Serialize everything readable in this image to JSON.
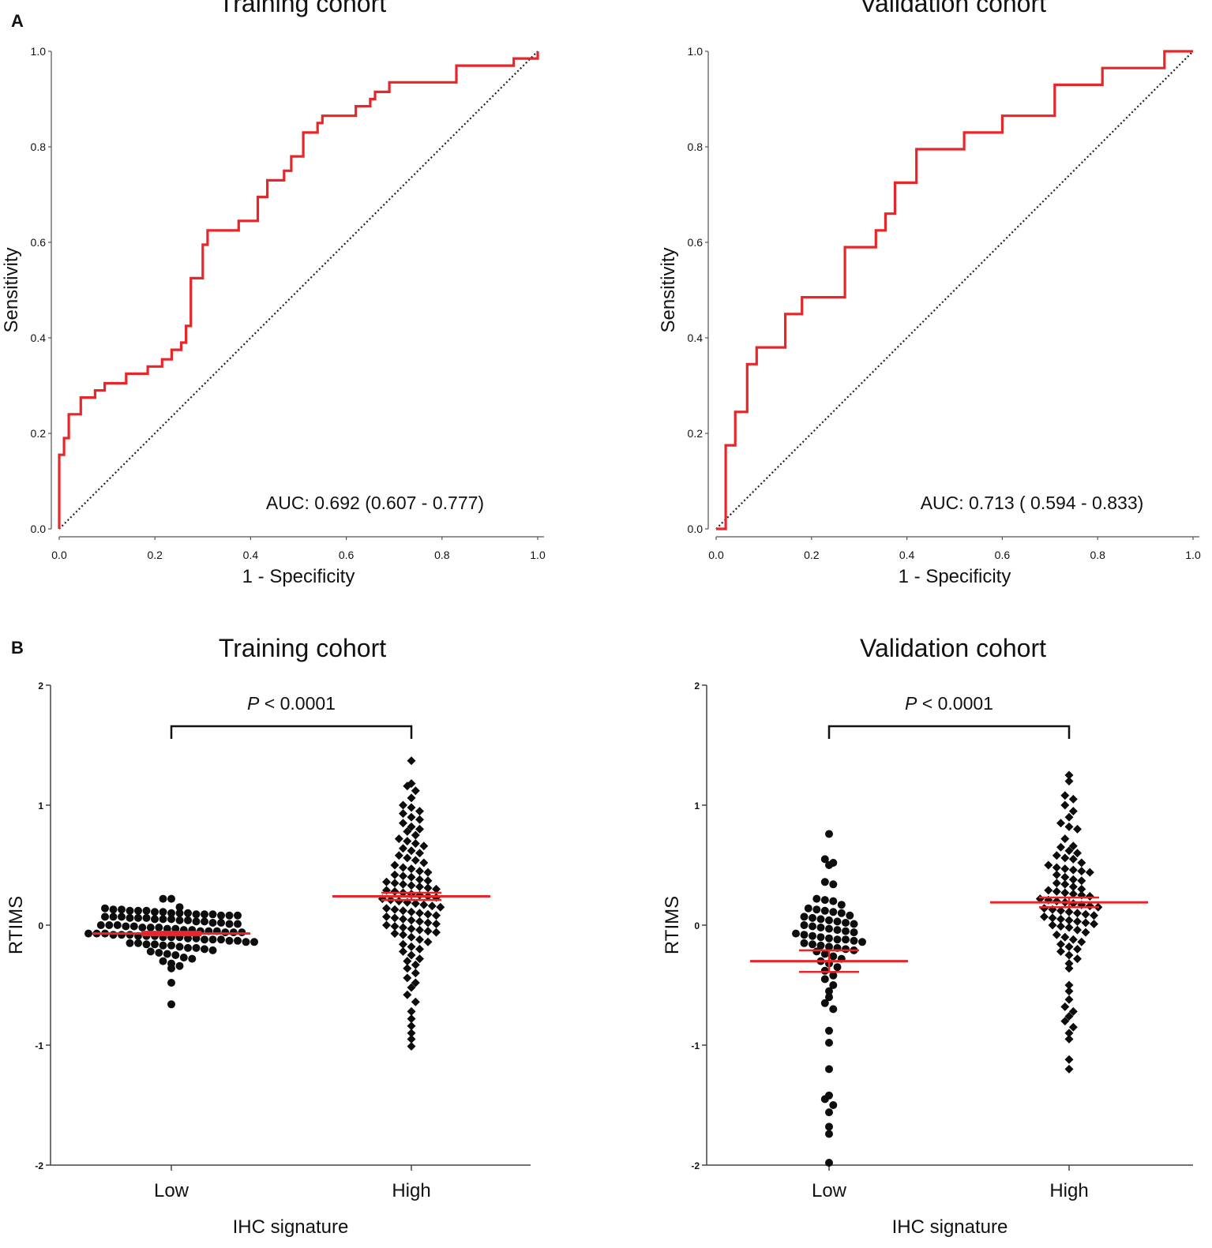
{
  "chart_data": [
    {
      "id": "A1",
      "type": "line",
      "panel_label": "A",
      "title": "Training cohort",
      "xlabel": "1 - Specificity",
      "ylabel": "Sensitivity",
      "xlim": [
        0,
        1
      ],
      "ylim": [
        0,
        1
      ],
      "xticks": [
        "0.0",
        "0.2",
        "0.4",
        "0.6",
        "0.8",
        "1.0"
      ],
      "yticks": [
        "0.0",
        "0.2",
        "0.4",
        "0.6",
        "0.8",
        "1.0"
      ],
      "annotation": "AUC: 0.692 (0.607 - 0.777)",
      "auc": 0.692,
      "auc_ci": [
        0.607,
        0.777
      ],
      "series": [
        {
          "name": "ROC",
          "color": "#e8262a",
          "x": [
            0,
            0,
            0.01,
            0.01,
            0.02,
            0.02,
            0.045,
            0.045,
            0.075,
            0.075,
            0.095,
            0.095,
            0.14,
            0.14,
            0.185,
            0.185,
            0.215,
            0.215,
            0.235,
            0.235,
            0.255,
            0.255,
            0.265,
            0.265,
            0.275,
            0.275,
            0.3,
            0.3,
            0.31,
            0.31,
            0.375,
            0.375,
            0.415,
            0.415,
            0.435,
            0.435,
            0.47,
            0.47,
            0.485,
            0.485,
            0.51,
            0.51,
            0.54,
            0.54,
            0.55,
            0.55,
            0.62,
            0.62,
            0.65,
            0.65,
            0.66,
            0.66,
            0.69,
            0.69,
            0.83,
            0.83,
            0.95,
            0.95,
            1.0,
            1.0
          ],
          "y": [
            0,
            0.155,
            0.155,
            0.19,
            0.19,
            0.24,
            0.24,
            0.275,
            0.275,
            0.29,
            0.29,
            0.305,
            0.305,
            0.325,
            0.325,
            0.34,
            0.34,
            0.355,
            0.355,
            0.375,
            0.375,
            0.39,
            0.39,
            0.425,
            0.425,
            0.525,
            0.525,
            0.595,
            0.595,
            0.625,
            0.625,
            0.645,
            0.645,
            0.695,
            0.695,
            0.73,
            0.73,
            0.75,
            0.75,
            0.78,
            0.78,
            0.83,
            0.83,
            0.85,
            0.85,
            0.865,
            0.865,
            0.885,
            0.885,
            0.9,
            0.9,
            0.915,
            0.915,
            0.935,
            0.935,
            0.97,
            0.97,
            0.985,
            0.985,
            1.0
          ]
        },
        {
          "name": "Reference",
          "color": "#222222",
          "x": [
            0,
            1
          ],
          "y": [
            0,
            1
          ]
        }
      ]
    },
    {
      "id": "A2",
      "type": "line",
      "panel_label": "",
      "title": "Validation cohort",
      "xlabel": "1 - Specificity",
      "ylabel": "Sensitivity",
      "xlim": [
        0,
        1
      ],
      "ylim": [
        0,
        1
      ],
      "xticks": [
        "0.0",
        "0.2",
        "0.4",
        "0.6",
        "0.8",
        "1.0"
      ],
      "yticks": [
        "0.0",
        "0.2",
        "0.4",
        "0.6",
        "0.8",
        "1.0"
      ],
      "annotation": "AUC: 0.713 ( 0.594 - 0.833)",
      "auc": 0.713,
      "auc_ci": [
        0.594,
        0.833
      ],
      "series": [
        {
          "name": "ROC",
          "color": "#e8262a",
          "x": [
            0,
            0.02,
            0.02,
            0.04,
            0.04,
            0.065,
            0.065,
            0.085,
            0.085,
            0.145,
            0.145,
            0.18,
            0.18,
            0.27,
            0.27,
            0.335,
            0.335,
            0.355,
            0.355,
            0.375,
            0.375,
            0.42,
            0.42,
            0.52,
            0.52,
            0.6,
            0.6,
            0.71,
            0.71,
            0.81,
            0.81,
            0.94,
            0.94,
            1.0
          ],
          "y": [
            0,
            0,
            0.175,
            0.175,
            0.245,
            0.245,
            0.345,
            0.345,
            0.38,
            0.38,
            0.45,
            0.45,
            0.485,
            0.485,
            0.59,
            0.59,
            0.625,
            0.625,
            0.66,
            0.66,
            0.725,
            0.725,
            0.795,
            0.795,
            0.83,
            0.83,
            0.865,
            0.865,
            0.93,
            0.93,
            0.965,
            0.965,
            1.0,
            1.0
          ]
        },
        {
          "name": "Reference",
          "color": "#222222",
          "x": [
            0,
            1
          ],
          "y": [
            0,
            1
          ]
        }
      ]
    },
    {
      "id": "B1",
      "type": "scatter",
      "panel_label": "B",
      "title": "Training cohort",
      "xlabel": "IHC signature",
      "ylabel": "RTIMS",
      "ylim": [
        -2,
        2
      ],
      "yticks": [
        "2",
        "1",
        "0",
        "-1",
        "-2"
      ],
      "categories": [
        "Low",
        "High"
      ],
      "annotation_italic": "P",
      "annotation": " < 0.0001",
      "groups": [
        {
          "name": "Low",
          "marker": "circle",
          "mean": -0.07,
          "sem": 0.015,
          "values": [
            0.22,
            0.22,
            0.15,
            0.14,
            0.13,
            0.13,
            0.12,
            0.12,
            0.12,
            0.11,
            0.11,
            0.1,
            0.1,
            0.1,
            0.09,
            0.09,
            0.09,
            0.08,
            0.08,
            0.08,
            0.07,
            0.07,
            0.07,
            0.06,
            0.06,
            0.06,
            0.05,
            0.05,
            0.05,
            0.04,
            0.04,
            0.03,
            0.03,
            0.02,
            0.02,
            0.01,
            0.01,
            0.0,
            0.0,
            0.0,
            -0.01,
            -0.01,
            -0.02,
            -0.02,
            -0.02,
            -0.03,
            -0.03,
            -0.04,
            -0.04,
            -0.05,
            -0.05,
            -0.05,
            -0.06,
            -0.06,
            -0.06,
            -0.07,
            -0.07,
            -0.07,
            -0.08,
            -0.08,
            -0.08,
            -0.09,
            -0.09,
            -0.09,
            -0.1,
            -0.1,
            -0.1,
            -0.11,
            -0.11,
            -0.12,
            -0.12,
            -0.12,
            -0.13,
            -0.13,
            -0.14,
            -0.14,
            -0.15,
            -0.15,
            -0.16,
            -0.16,
            -0.17,
            -0.17,
            -0.18,
            -0.19,
            -0.19,
            -0.2,
            -0.21,
            -0.22,
            -0.23,
            -0.24,
            -0.25,
            -0.27,
            -0.28,
            -0.3,
            -0.32,
            -0.34,
            -0.36,
            -0.48,
            -0.66
          ]
        },
        {
          "name": "High",
          "marker": "diamond",
          "mean": 0.24,
          "sem": 0.03,
          "values": [
            1.37,
            1.18,
            1.16,
            1.12,
            1.06,
            1.0,
            0.98,
            0.95,
            0.93,
            0.9,
            0.88,
            0.85,
            0.82,
            0.8,
            0.78,
            0.75,
            0.72,
            0.7,
            0.68,
            0.66,
            0.64,
            0.62,
            0.6,
            0.58,
            0.56,
            0.54,
            0.52,
            0.5,
            0.48,
            0.47,
            0.45,
            0.44,
            0.42,
            0.41,
            0.4,
            0.38,
            0.37,
            0.36,
            0.35,
            0.34,
            0.33,
            0.32,
            0.31,
            0.3,
            0.29,
            0.28,
            0.27,
            0.26,
            0.25,
            0.24,
            0.23,
            0.22,
            0.21,
            0.2,
            0.19,
            0.18,
            0.17,
            0.16,
            0.15,
            0.14,
            0.13,
            0.12,
            0.11,
            0.1,
            0.09,
            0.08,
            0.07,
            0.06,
            0.05,
            0.04,
            0.03,
            0.02,
            0.01,
            0.0,
            -0.01,
            -0.02,
            -0.03,
            -0.04,
            -0.05,
            -0.06,
            -0.07,
            -0.08,
            -0.1,
            -0.12,
            -0.14,
            -0.16,
            -0.18,
            -0.2,
            -0.22,
            -0.25,
            -0.28,
            -0.3,
            -0.33,
            -0.36,
            -0.4,
            -0.44,
            -0.48,
            -0.52,
            -0.58,
            -0.64,
            -0.72,
            -0.78,
            -0.84,
            -0.9,
            -0.95,
            -1.01
          ]
        }
      ]
    },
    {
      "id": "B2",
      "type": "scatter",
      "panel_label": "",
      "title": "Validation cohort",
      "xlabel": "IHC signature",
      "ylabel": "RTIMS",
      "ylim": [
        -2,
        2
      ],
      "yticks": [
        "2",
        "1",
        "0",
        "-1",
        "-2"
      ],
      "categories": [
        "Low",
        "High"
      ],
      "annotation_italic": "P",
      "annotation": " < 0.0001",
      "groups": [
        {
          "name": "Low",
          "marker": "circle",
          "mean": -0.3,
          "sem": 0.09,
          "values": [
            0.76,
            0.55,
            0.52,
            0.5,
            0.36,
            0.34,
            0.22,
            0.21,
            0.2,
            0.17,
            0.14,
            0.13,
            0.12,
            0.11,
            0.1,
            0.08,
            0.07,
            0.06,
            0.05,
            0.04,
            0.03,
            0.02,
            0.01,
            0.0,
            -0.01,
            -0.02,
            -0.03,
            -0.04,
            -0.05,
            -0.06,
            -0.07,
            -0.08,
            -0.09,
            -0.1,
            -0.11,
            -0.12,
            -0.12,
            -0.13,
            -0.14,
            -0.15,
            -0.16,
            -0.17,
            -0.18,
            -0.19,
            -0.2,
            -0.21,
            -0.22,
            -0.24,
            -0.26,
            -0.28,
            -0.3,
            -0.32,
            -0.35,
            -0.38,
            -0.42,
            -0.45,
            -0.5,
            -0.55,
            -0.6,
            -0.65,
            -0.7,
            -0.88,
            -0.98,
            -1.2,
            -1.42,
            -1.45,
            -1.5,
            -1.56,
            -1.68,
            -1.74,
            -1.98
          ]
        },
        {
          "name": "High",
          "marker": "diamond",
          "mean": 0.19,
          "sem": 0.04,
          "values": [
            1.25,
            1.2,
            1.08,
            1.05,
            1.0,
            0.95,
            0.9,
            0.85,
            0.82,
            0.8,
            0.72,
            0.66,
            0.65,
            0.62,
            0.6,
            0.58,
            0.56,
            0.55,
            0.52,
            0.5,
            0.48,
            0.47,
            0.46,
            0.45,
            0.44,
            0.42,
            0.4,
            0.38,
            0.37,
            0.35,
            0.34,
            0.32,
            0.3,
            0.29,
            0.28,
            0.27,
            0.26,
            0.25,
            0.24,
            0.22,
            0.21,
            0.2,
            0.19,
            0.18,
            0.17,
            0.16,
            0.15,
            0.14,
            0.13,
            0.12,
            0.11,
            0.1,
            0.09,
            0.08,
            0.07,
            0.06,
            0.05,
            0.04,
            0.03,
            0.02,
            0.01,
            0.0,
            -0.01,
            -0.02,
            -0.04,
            -0.06,
            -0.08,
            -0.1,
            -0.12,
            -0.14,
            -0.16,
            -0.18,
            -0.2,
            -0.22,
            -0.25,
            -0.28,
            -0.32,
            -0.36,
            -0.5,
            -0.55,
            -0.62,
            -0.68,
            -0.72,
            -0.76,
            -0.8,
            -0.85,
            -0.9,
            -0.95,
            -1.12,
            -1.2
          ]
        }
      ]
    }
  ]
}
